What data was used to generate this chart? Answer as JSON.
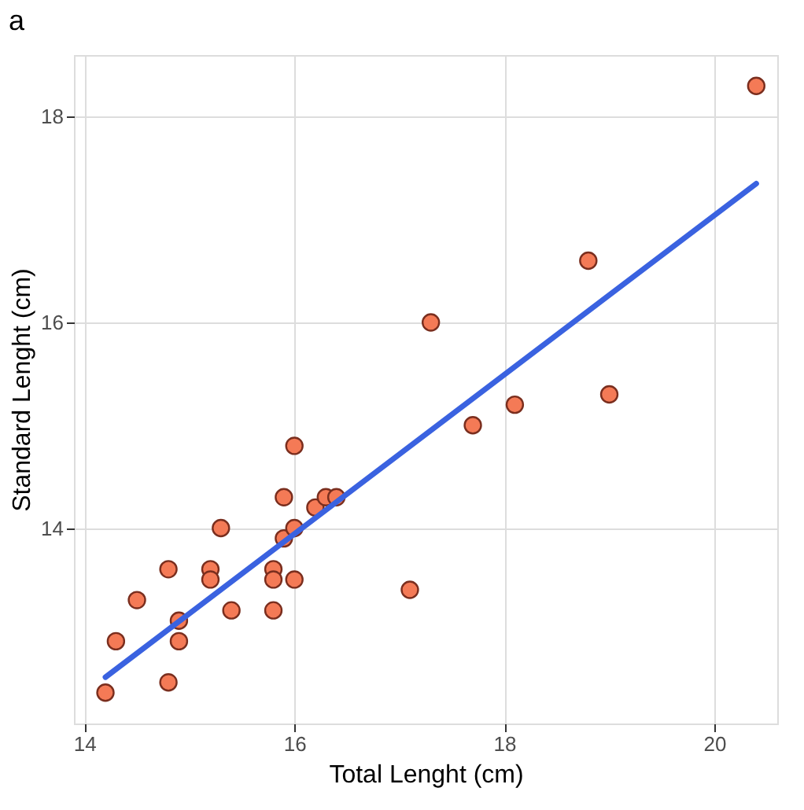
{
  "chart_data": {
    "type": "scatter",
    "title": "a",
    "xlabel": "Total Lenght (cm)",
    "ylabel": "Standard Lenght (cm)",
    "xlim": [
      13.9,
      20.6
    ],
    "ylim": [
      12.1,
      18.6
    ],
    "xticks": [
      14,
      16,
      18,
      20
    ],
    "yticks": [
      14,
      16,
      18
    ],
    "grid": true,
    "series": [
      {
        "color": "#f47a56",
        "marker": "circle",
        "x": [
          14.2,
          14.3,
          14.5,
          14.8,
          14.8,
          14.9,
          14.9,
          15.2,
          15.2,
          15.3,
          15.4,
          15.8,
          15.8,
          15.8,
          15.9,
          15.9,
          16.0,
          16.0,
          16.0,
          16.2,
          16.3,
          16.4,
          17.1,
          17.3,
          17.7,
          18.1,
          18.8,
          19.0,
          20.4
        ],
        "values": [
          12.4,
          12.9,
          13.3,
          13.6,
          12.5,
          13.1,
          12.9,
          13.6,
          13.5,
          14.0,
          13.2,
          13.6,
          13.5,
          13.2,
          14.3,
          13.9,
          14.0,
          14.8,
          13.5,
          14.2,
          14.3,
          14.3,
          13.4,
          16.0,
          15.0,
          15.2,
          16.6,
          15.3,
          18.3
        ]
      },
      {
        "type": "line",
        "marker": "none",
        "color": "#3a62e0",
        "x": [
          14.2,
          20.4
        ],
        "values": [
          12.55,
          17.35
        ]
      }
    ]
  }
}
